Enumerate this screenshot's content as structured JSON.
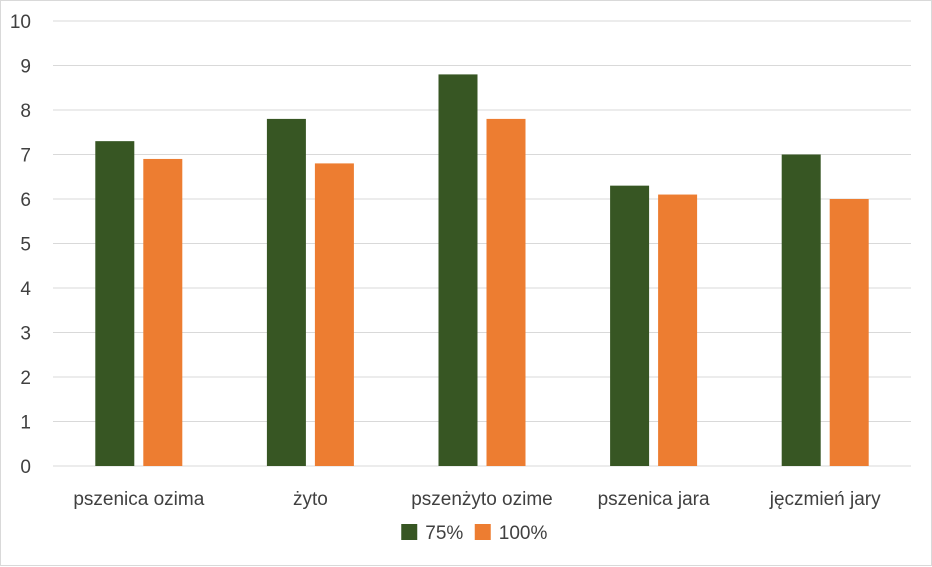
{
  "chart_data": {
    "type": "bar",
    "categories": [
      "pszenica ozima",
      "żyto",
      "pszenżyto ozime",
      "pszenica jara",
      "jęczmień jary"
    ],
    "series": [
      {
        "name": "75%",
        "color": "#375623",
        "values": [
          7.3,
          7.8,
          8.8,
          6.3,
          7.0
        ]
      },
      {
        "name": "100%",
        "color": "#ED7D31",
        "values": [
          6.9,
          6.8,
          7.8,
          6.1,
          6.0
        ]
      }
    ],
    "ylim": [
      0,
      10
    ],
    "yticks": [
      "0",
      "1",
      "2",
      "3",
      "4",
      "5",
      "6",
      "7",
      "8",
      "9",
      "10"
    ],
    "grid": true,
    "legend_position": "bottom",
    "gridline_color": "#d9d9d9"
  }
}
